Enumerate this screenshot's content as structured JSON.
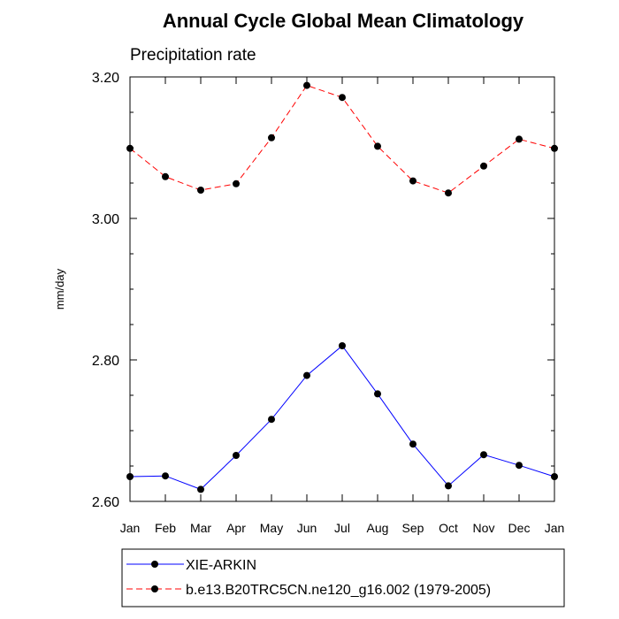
{
  "chart_data": {
    "type": "line",
    "title": "Annual Cycle Global Mean Climatology",
    "subtitle": "Precipitation rate",
    "xlabel": "",
    "ylabel": "mm/day",
    "categories": [
      "Jan",
      "Feb",
      "Mar",
      "Apr",
      "May",
      "Jun",
      "Jul",
      "Aug",
      "Sep",
      "Oct",
      "Nov",
      "Dec",
      "Jan"
    ],
    "ylim": [
      2.6,
      3.2
    ],
    "yticks": [
      "2.60",
      "2.80",
      "3.00",
      "3.20"
    ],
    "ytick_values": [
      2.6,
      2.8,
      3.0,
      3.2
    ],
    "y_minor_step": 0.05,
    "grid": false,
    "legend_position": "bottom",
    "series": [
      {
        "name": "XIE-ARKIN",
        "color": "#0000ff",
        "line_style": "solid",
        "marker": "filled-circle",
        "values": [
          2.635,
          2.636,
          2.617,
          2.665,
          2.716,
          2.778,
          2.82,
          2.752,
          2.681,
          2.622,
          2.666,
          2.651,
          2.635
        ]
      },
      {
        "name": "b.e13.B20TRC5CN.ne120_g16.002 (1979-2005)",
        "color": "#ff0000",
        "line_style": "dashed",
        "marker": "filled-circle",
        "values": [
          3.099,
          3.059,
          3.04,
          3.049,
          3.114,
          3.188,
          3.171,
          3.102,
          3.053,
          3.036,
          3.074,
          3.112,
          3.099
        ]
      }
    ]
  }
}
